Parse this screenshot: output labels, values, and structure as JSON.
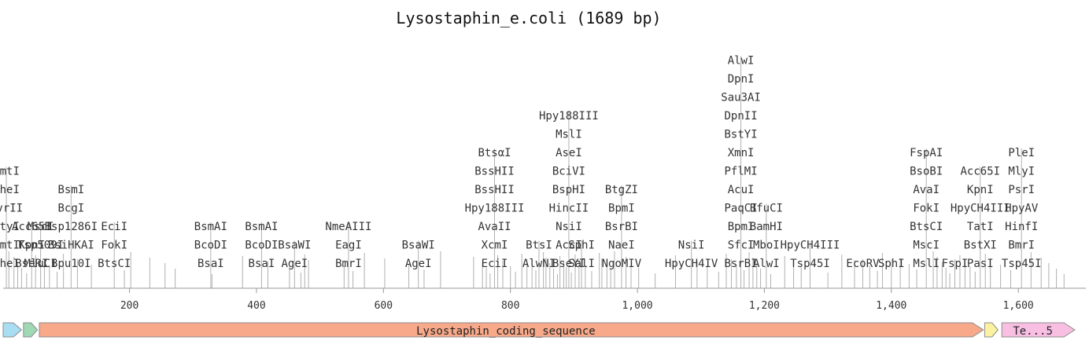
{
  "title": "Lysostaphin_e.coli (1689 bp)",
  "axis": {
    "min": 1,
    "max": 1689,
    "ticks": [
      200,
      400,
      600,
      800,
      1000,
      1200,
      1400,
      1600
    ],
    "tick_labels": [
      "200",
      "400",
      "600",
      "800",
      "1,000",
      "1,200",
      "1,400",
      "1,600"
    ]
  },
  "colors": {
    "cut_line": "#b0b0b0",
    "axis": "#999999",
    "coding_sequence": "#f7a98a",
    "coding_stroke": "#c9735a",
    "arrow_blue": "#a8ddf2",
    "arrow_green": "#9fd8b4",
    "arrow_yellow": "#fbf1a0",
    "arrow_pink": "#f8bfe2"
  },
  "features": [
    {
      "name": "",
      "start": 1,
      "end": 30,
      "color": "#a8ddf2"
    },
    {
      "name": "",
      "start": 33,
      "end": 55,
      "color": "#9fd8b4"
    },
    {
      "name": "Lysostaphin_coding_sequence",
      "start": 58,
      "end": 1545,
      "color": "#f7a98a"
    },
    {
      "name": "",
      "start": 1547,
      "end": 1568,
      "color": "#fbf1a0"
    },
    {
      "name": "Te...5",
      "start": 1574,
      "end": 1689,
      "color": "#f8bfe2"
    }
  ],
  "sites": [
    {
      "pos": 6,
      "stack": [
        "NheI",
        "BmtI",
        "StyI",
        "AvrII",
        "NheI",
        "BmtI"
      ]
    },
    {
      "pos": 46,
      "stack": [
        "BseRI",
        "KpnI",
        "Acc65I"
      ]
    },
    {
      "pos": 60,
      "stack": [
        "MluCI",
        "Tsp509I",
        "MscI"
      ]
    },
    {
      "pos": 108,
      "stack": [
        "Bpu10I",
        "BsiHKAI",
        "Bsp1286I",
        "BcgI",
        "BsmI"
      ]
    },
    {
      "pos": 176,
      "stack": [
        "BtsCI",
        "FokI",
        "EciI"
      ]
    },
    {
      "pos": 328,
      "stack": [
        "BsaI",
        "BcoDI",
        "BsmAI"
      ]
    },
    {
      "pos": 408,
      "stack": [
        "BsaI",
        "BcoDI",
        "BsmAI"
      ]
    },
    {
      "pos": 460,
      "stack": [
        "AgeI",
        "BsaWI"
      ]
    },
    {
      "pos": 545,
      "stack": [
        "BmrI",
        "EagI",
        "NmeAIII"
      ]
    },
    {
      "pos": 655,
      "stack": [
        "AgeI",
        "BsaWI"
      ]
    },
    {
      "pos": 775,
      "stack": [
        "EciI",
        "XcmI",
        "AvaII",
        "Hpy188III",
        "BssHII",
        "BssHII",
        "BtsαI"
      ]
    },
    {
      "pos": 845,
      "stack": [
        "AlwNI",
        "BtsI"
      ]
    },
    {
      "pos": 892,
      "stack": [
        "BseYI",
        "AccI",
        "NsiI",
        "HincII",
        "BspHI",
        "BciVI",
        "AseI",
        "MslI",
        "Hpy188III"
      ]
    },
    {
      "pos": 912,
      "stack": [
        "SalI",
        "SphI"
      ]
    },
    {
      "pos": 975,
      "stack": [
        "NgoMIV",
        "NaeI",
        "BsrBI",
        "BpmI",
        "BtgZI"
      ]
    },
    {
      "pos": 1085,
      "stack": [
        "HpyCH4IV",
        "NsiI"
      ]
    },
    {
      "pos": 1163,
      "stack": [
        "BsrBI",
        "SfcI",
        "BpmI",
        "PaqCI",
        "AcuI",
        "PflMI",
        "XmnI",
        "BstYI",
        "DpnII",
        "Sau3AI",
        "DpnI",
        "AlwI"
      ]
    },
    {
      "pos": 1203,
      "stack": [
        "AlwI",
        "MboI",
        "BamHI",
        "BfuCI"
      ]
    },
    {
      "pos": 1272,
      "stack": [
        "Tsp45I",
        "HpyCH4III"
      ]
    },
    {
      "pos": 1355,
      "stack": [
        "EcoRV"
      ]
    },
    {
      "pos": 1400,
      "stack": [
        "SphI"
      ]
    },
    {
      "pos": 1455,
      "stack": [
        "MslI",
        "MscI",
        "BtsCI",
        "FokI",
        "AvaI",
        "BsoBI",
        "FspAI"
      ]
    },
    {
      "pos": 1500,
      "stack": [
        "FspI"
      ]
    },
    {
      "pos": 1540,
      "stack": [
        "PasI",
        "BstXI",
        "TatI",
        "HpyCH4III",
        "KpnI",
        "Acc65I"
      ]
    },
    {
      "pos": 1605,
      "stack": [
        "Tsp45I",
        "BmrI",
        "HinfI",
        "HpyAV",
        "PsrI",
        "MlyI",
        "PleI"
      ]
    }
  ],
  "extra_cut_positions": [
    10,
    18,
    24,
    30,
    38,
    52,
    66,
    74,
    86,
    96,
    118,
    140,
    192,
    202,
    232,
    256,
    272,
    330,
    378,
    418,
    452,
    470,
    476,
    482,
    538,
    552,
    570,
    602,
    640,
    664,
    690,
    742,
    756,
    762,
    768,
    780,
    788,
    800,
    808,
    818,
    826,
    834,
    840,
    852,
    856,
    862,
    868,
    874,
    878,
    884,
    888,
    896,
    902,
    908,
    918,
    928,
    940,
    944,
    952,
    958,
    964,
    982,
    990,
    1002,
    1028,
    1060,
    1094,
    1110,
    1128,
    1140,
    1148,
    1156,
    1168,
    1176,
    1182,
    1188,
    1194,
    1210,
    1232,
    1246,
    1258,
    1300,
    1322,
    1342,
    1366,
    1378,
    1386,
    1414,
    1428,
    1440,
    1466,
    1472,
    1480,
    1486,
    1492,
    1508,
    1516,
    1524,
    1532,
    1548,
    1556,
    1572,
    1588,
    1620,
    1636,
    1648,
    1660,
    1672
  ]
}
